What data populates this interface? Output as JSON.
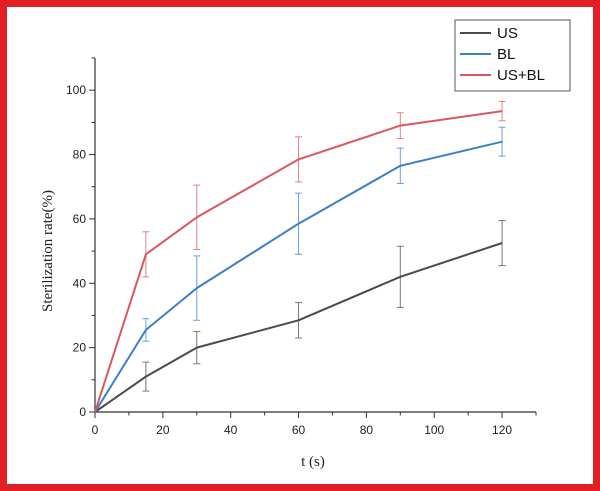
{
  "chart_data": {
    "type": "line",
    "xlabel": "t (s)",
    "ylabel": "Sterilization rate(%)",
    "xlim": [
      0,
      130
    ],
    "ylim": [
      0,
      110
    ],
    "xticks": [
      0,
      20,
      40,
      60,
      80,
      100,
      120
    ],
    "yticks": [
      0,
      20,
      40,
      60,
      80,
      100
    ],
    "grid": false,
    "legend": "top-right",
    "x": [
      0,
      15,
      30,
      60,
      90,
      120
    ],
    "series": [
      {
        "name": "US",
        "color": "#4a4a4a",
        "values": [
          0,
          11,
          20,
          28.5,
          42,
          52.5
        ],
        "errors": [
          0,
          4.5,
          5,
          5.5,
          9.5,
          7
        ]
      },
      {
        "name": "BL",
        "color": "#3a7fc8",
        "values": [
          0,
          25.5,
          38.5,
          58.5,
          76.5,
          84
        ],
        "errors": [
          0,
          3.5,
          10,
          9.5,
          5.5,
          4.5
        ]
      },
      {
        "name": "US+BL",
        "color": "#d9585e",
        "values": [
          0,
          49,
          60.5,
          78.5,
          89,
          93.5
        ],
        "errors": [
          0,
          7,
          10,
          7,
          4,
          3
        ]
      }
    ]
  }
}
